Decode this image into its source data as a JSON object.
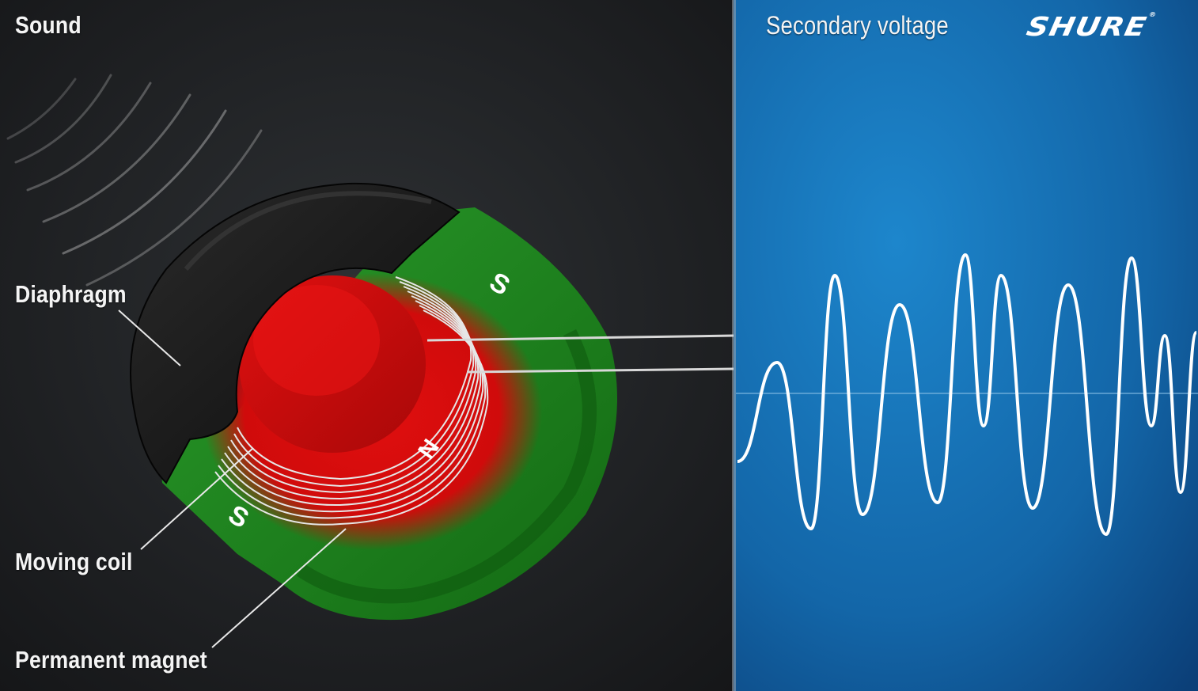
{
  "left_panel": {
    "title": "Sound",
    "labels": {
      "diaphragm": "Diaphragm",
      "moving_coil": "Moving coil",
      "permanent_magnet": "Permanent magnet"
    },
    "poles": {
      "top_south": "S",
      "bottom_south": "S",
      "north": "N"
    }
  },
  "right_panel": {
    "title": "Secondary voltage",
    "brand": "SHURE"
  },
  "colors": {
    "left_background": "#1b1d1f",
    "right_background": "#1466a8",
    "diaphragm": "#141414",
    "magnet_green": "#1f8a1f",
    "magnet_red": "#d10d0d",
    "coil_wire": "#e6e6e6",
    "waveform": "#ffffff"
  },
  "icons": [
    "sound-waves-icon",
    "brand-logo"
  ]
}
